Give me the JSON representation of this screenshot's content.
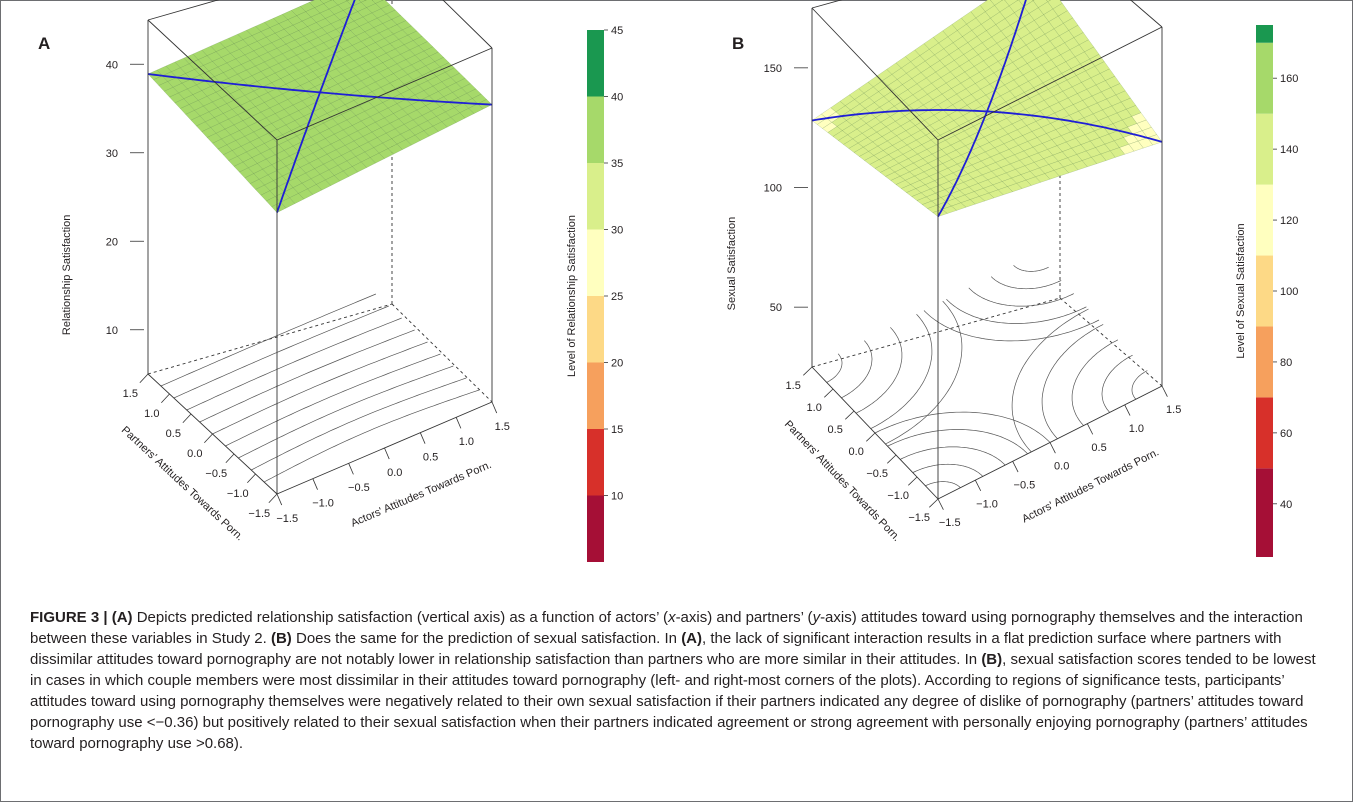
{
  "chart_data": [
    {
      "panel_label": "A",
      "type": "surface",
      "zlabel": "Relationship Satisfaction",
      "xlabel": "Actors' Attitudes Towards Porn.",
      "ylabel": "Partners' Attitudes Towards Porn.",
      "x_ticks": [
        "−1.5",
        "−1.0",
        "−0.5",
        "0.0",
        "0.5",
        "1.0",
        "1.5"
      ],
      "y_ticks": [
        "−1.5",
        "−1.0",
        "−0.5",
        "0.0",
        "0.5",
        "1.0",
        "1.5"
      ],
      "z_ticks": [
        "10",
        "20",
        "30",
        "40"
      ],
      "xlim": [
        -1.5,
        1.5
      ],
      "ylim": [
        -1.5,
        1.5
      ],
      "zlim": [
        5,
        45
      ],
      "surface_corner_values": {
        "x_min_y_min": 36.8,
        "x_max_y_min": 38.6,
        "x_min_y_max": 38.9,
        "x_max_y_max": 39.3
      },
      "legend": {
        "title": "Level of Relationship Satisfaction",
        "tick_labels": [
          "10",
          "15",
          "20",
          "25",
          "30",
          "35",
          "40",
          "45"
        ],
        "breaks": [
          5,
          10,
          15,
          20,
          25,
          30,
          35,
          40,
          45
        ],
        "colors": [
          "#a50f36",
          "#d7302a",
          "#f6a05d",
          "#fdd986",
          "#ffffbf",
          "#d9ef8b",
          "#a6d96a",
          "#1a9850",
          "#006837"
        ]
      }
    },
    {
      "panel_label": "B",
      "type": "surface",
      "zlabel": "Sexual Satisfaction",
      "xlabel": "Actors' Attitudes Towards Porn.",
      "ylabel": "Partners' Attitudes Towards Porn.",
      "x_ticks": [
        "−1.5",
        "−1.0",
        "−0.5",
        "0.0",
        "0.5",
        "1.0",
        "1.5"
      ],
      "y_ticks": [
        "−1.5",
        "−1.0",
        "−0.5",
        "0.0",
        "0.5",
        "1.0",
        "1.5"
      ],
      "z_ticks": [
        "50",
        "100",
        "150"
      ],
      "xlim": [
        -1.5,
        1.5
      ],
      "ylim": [
        -1.5,
        1.5
      ],
      "zlim": [
        25,
        175
      ],
      "surface_corner_values": {
        "x_min_y_min": 143,
        "x_max_y_min": 127,
        "x_min_y_max": 128,
        "x_max_y_max": 145
      },
      "legend": {
        "title": "Level of Sexual Satisfaction",
        "tick_labels": [
          "40",
          "60",
          "80",
          "100",
          "120",
          "140",
          "160"
        ],
        "breaks": [
          25,
          50,
          70,
          90,
          110,
          130,
          150,
          170,
          175
        ],
        "colors": [
          "#a50f36",
          "#d7302a",
          "#f6a05d",
          "#fdd986",
          "#ffffbf",
          "#d9ef8b",
          "#a6d96a",
          "#1a9850",
          "#006837"
        ]
      }
    }
  ],
  "caption": {
    "label": "FIGURE 3 |",
    "A": "(A)",
    "B": "(B)",
    "t1": " Depicts predicted relationship satisfaction (vertical axis) as a function of actors’ (",
    "x_axis": "x",
    "t2": "-axis) and partners’ (",
    "y_axis": "y",
    "t3": "-axis) attitudes toward using pornography themselves and the interaction between these variables in Study 2. ",
    "t4": " Does the same for the prediction of sexual satisfaction. In ",
    "t5": ", the lack of significant interaction results in a flat prediction surface where partners with dissimilar attitudes toward pornography are not notably lower in relationship satisfaction than partners who are more similar in their attitudes. In ",
    "t6": ", sexual satisfaction scores tended to be lowest in cases in which couple members were most dissimilar in their attitudes toward pornography (left- and right-most corners of the plots). According to regions of significance tests, participants’ attitudes toward using pornography themselves were negatively related to their own sexual satisfaction if their partners indicated any degree of dislike of pornography (partners’ attitudes toward pornography use <−0.36) but positively related to their sexual satisfaction when their partners indicated agreement or strong agreement with personally enjoying pornography (partners’ attitudes toward pornography use >0.68)."
  }
}
